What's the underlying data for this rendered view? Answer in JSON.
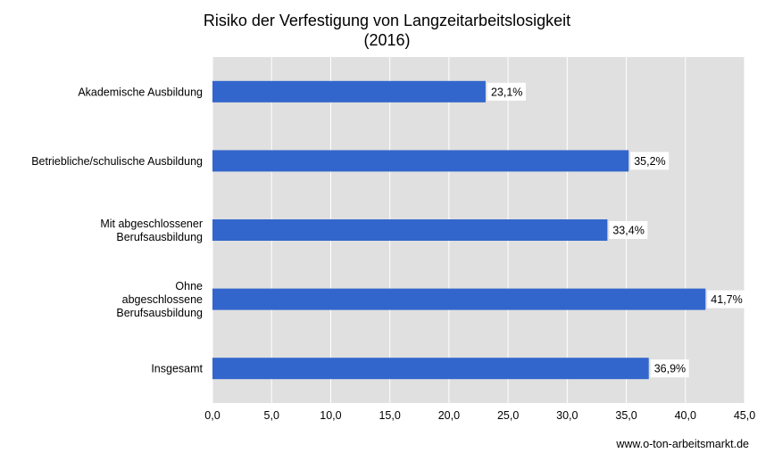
{
  "chart_data": {
    "type": "bar",
    "orientation": "horizontal",
    "title": "Risiko der Verfestigung von Langzeitarbeitslosigkeit",
    "subtitle": "(2016)",
    "categories": [
      [
        "Akademische Ausbildung"
      ],
      [
        "Betriebliche/schulische Ausbildung"
      ],
      [
        "Mit abgeschlossener",
        "Berufsausbildung"
      ],
      [
        "Ohne",
        "abgeschlossene",
        "Berufsausbildung"
      ],
      [
        "Insgesamt"
      ]
    ],
    "values": [
      23.1,
      35.2,
      33.4,
      41.7,
      36.9
    ],
    "data_labels": [
      "23,1%",
      "35,2%",
      "33,4%",
      "41,7%",
      "36,9%"
    ],
    "xlim": [
      0,
      45
    ],
    "x_ticks": [
      "0,0",
      "5,0",
      "10,0",
      "15,0",
      "20,0",
      "25,0",
      "30,0",
      "35,0",
      "40,0",
      "45,0"
    ],
    "grid": true,
    "legend": "none",
    "bar_color": "#3366cc",
    "plot_background": "#e0e0e0"
  },
  "source": "www.o-ton-arbeitsmarkt.de"
}
